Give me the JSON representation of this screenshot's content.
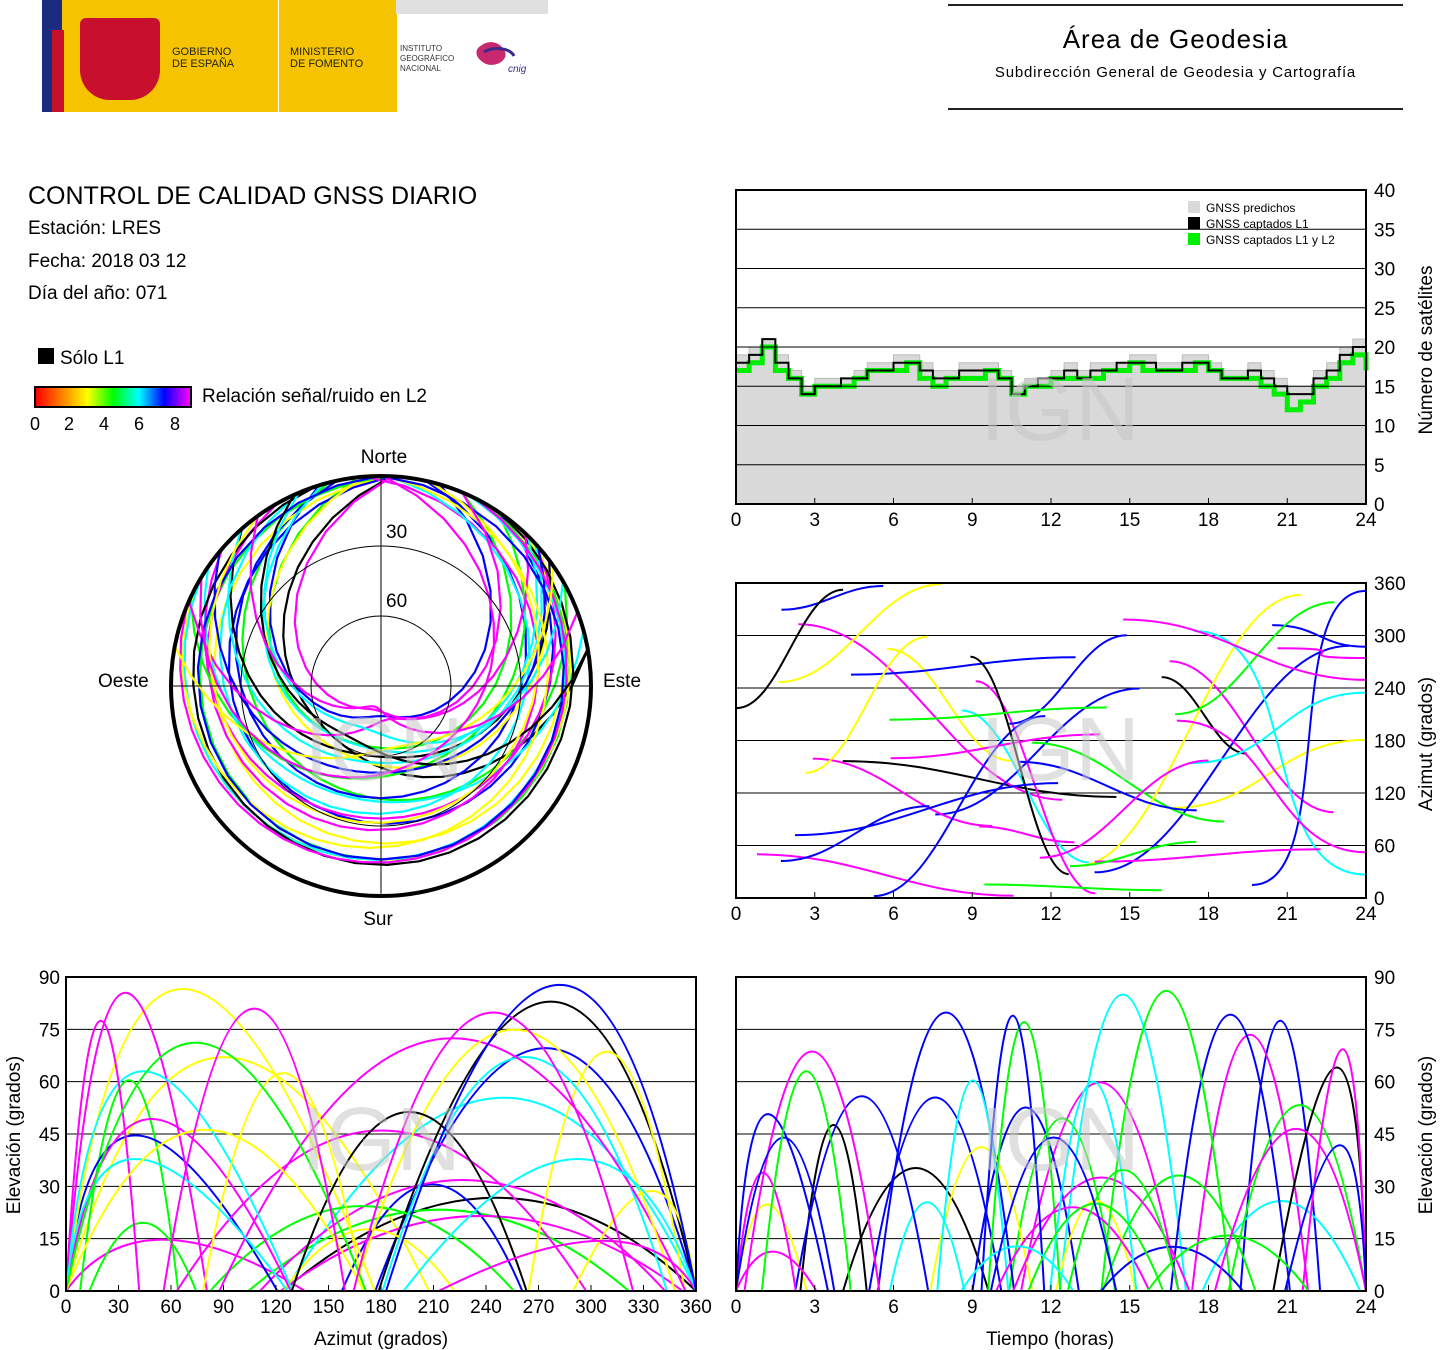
{
  "header": {
    "gov_line1": "GOBIERNO",
    "gov_line2": "DE ESPAÑA",
    "min_line1": "MINISTERIO",
    "min_line2": "DE FOMENTO",
    "ign_line1": "INSTITUTO",
    "ign_line2": "GEOGRÁFICO",
    "ign_line3": "NACIONAL",
    "cnig": "cnig",
    "area_title": "Área de Geodesia",
    "area_subtitle": "Subdirección General de Geodesia y Cartografía"
  },
  "report": {
    "title": "CONTROL DE CALIDAD GNSS DIARIO",
    "station": "Estación: LRES",
    "date": "Fecha: 2018 03 12",
    "doy": "Día del año: 071"
  },
  "legend": {
    "solo_l1": "Sólo L1",
    "snr_label": "Relación señal/ruido en L2",
    "snr_ticks": [
      "0",
      "2",
      "4",
      "6",
      "8"
    ]
  },
  "watermark": "IGN",
  "colors": {
    "snr_scale": [
      "#ff0000",
      "#ff8000",
      "#ffff00",
      "#00ff00",
      "#00ffff",
      "#0000ff",
      "#ff00ff"
    ],
    "predicted": "#d9d9d9",
    "l1": "#000000",
    "l1l2": "#00ee00"
  },
  "chart_data": [
    {
      "type": "area",
      "id": "satellites",
      "title": "",
      "xlabel": "",
      "ylabel": "Número de satélites",
      "xlim": [
        0,
        24
      ],
      "ylim": [
        0,
        40
      ],
      "xticks": [
        "0",
        "3",
        "6",
        "9",
        "12",
        "15",
        "18",
        "21",
        "24"
      ],
      "yticks": [
        "0",
        "5",
        "10",
        "15",
        "20",
        "25",
        "30",
        "35",
        "40"
      ],
      "grid": true,
      "legend_position": "top-right",
      "legend": [
        "GNSS predichos",
        "GNSS captados L1",
        "GNSS captados L1 y L2"
      ],
      "x": [
        0,
        0.5,
        1,
        1.5,
        2,
        2.5,
        3,
        3.5,
        4,
        4.5,
        5,
        5.5,
        6,
        6.5,
        7,
        7.5,
        8,
        8.5,
        9,
        9.5,
        10,
        10.5,
        11,
        11.5,
        12,
        12.5,
        13,
        13.5,
        14,
        14.5,
        15,
        15.5,
        16,
        16.5,
        17,
        17.5,
        18,
        18.5,
        19,
        19.5,
        20,
        20.5,
        21,
        21.5,
        22,
        22.5,
        23,
        23.5,
        24
      ],
      "series": [
        {
          "name": "GNSS predichos",
          "values": [
            19,
            20,
            21,
            19,
            17,
            15,
            16,
            16,
            16,
            17,
            18,
            18,
            19,
            19,
            18,
            17,
            17,
            18,
            18,
            18,
            17,
            15,
            16,
            16,
            17,
            18,
            17,
            18,
            18,
            18,
            19,
            19,
            18,
            18,
            19,
            19,
            18,
            17,
            17,
            18,
            17,
            16,
            15,
            15,
            17,
            18,
            20,
            21,
            19
          ]
        },
        {
          "name": "GNSS captados L1",
          "values": [
            18,
            19,
            21,
            18,
            16,
            14,
            15,
            15,
            16,
            16,
            17,
            17,
            18,
            18,
            17,
            16,
            16,
            17,
            17,
            17,
            16,
            14,
            15,
            16,
            16,
            17,
            16,
            17,
            17,
            18,
            18,
            18,
            17,
            17,
            18,
            18,
            17,
            16,
            16,
            17,
            16,
            15,
            14,
            14,
            16,
            17,
            19,
            20,
            18
          ]
        },
        {
          "name": "GNSS captados L1 y L2",
          "values": [
            17,
            18,
            20,
            17,
            16,
            14,
            15,
            15,
            15,
            16,
            17,
            17,
            17,
            18,
            16,
            15,
            16,
            16,
            16,
            17,
            16,
            14,
            15,
            15,
            16,
            16,
            16,
            16,
            17,
            17,
            18,
            17,
            17,
            17,
            17,
            18,
            17,
            16,
            16,
            16,
            15,
            14,
            12,
            13,
            15,
            16,
            18,
            19,
            17
          ]
        }
      ]
    },
    {
      "type": "scatter",
      "id": "skyplot",
      "title": "",
      "polar": true,
      "compass": [
        "Norte",
        "Este",
        "Sur",
        "Oeste"
      ],
      "rings": [
        "30",
        "60"
      ],
      "tracks": 32
    },
    {
      "type": "scatter",
      "id": "azimuth_time",
      "title": "",
      "xlabel": "",
      "ylabel": "Azimut (grados)",
      "xlim": [
        0,
        24
      ],
      "ylim": [
        0,
        360
      ],
      "xticks": [
        "0",
        "3",
        "6",
        "9",
        "12",
        "15",
        "18",
        "21",
        "24"
      ],
      "yticks": [
        "0",
        "60",
        "120",
        "180",
        "240",
        "300",
        "360"
      ],
      "grid": true
    },
    {
      "type": "scatter",
      "id": "elev_azimuth",
      "title": "",
      "xlabel": "Azimut (grados)",
      "ylabel": "Elevación (grados)",
      "xlim": [
        0,
        360
      ],
      "ylim": [
        0,
        90
      ],
      "xticks": [
        "0",
        "30",
        "60",
        "90",
        "120",
        "150",
        "180",
        "210",
        "240",
        "270",
        "300",
        "330",
        "360"
      ],
      "yticks": [
        "0",
        "15",
        "30",
        "45",
        "60",
        "75",
        "90"
      ],
      "grid": true
    },
    {
      "type": "line",
      "id": "elev_time",
      "title": "",
      "xlabel": "Tiempo (horas)",
      "ylabel": "Elevación (grados)",
      "xlim": [
        0,
        24
      ],
      "ylim": [
        0,
        90
      ],
      "xticks": [
        "0",
        "3",
        "6",
        "9",
        "12",
        "15",
        "18",
        "21",
        "24"
      ],
      "yticks": [
        "0",
        "15",
        "30",
        "45",
        "60",
        "75",
        "90"
      ],
      "grid": true
    }
  ]
}
